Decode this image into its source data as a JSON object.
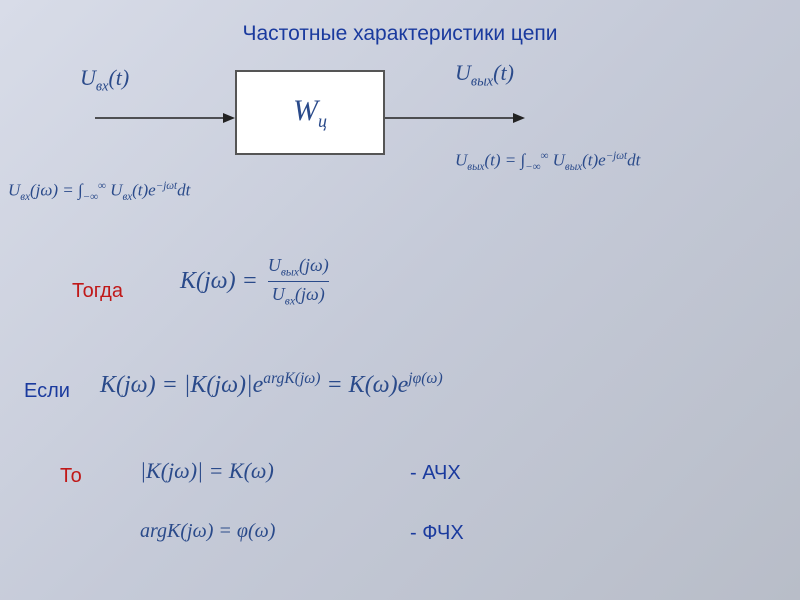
{
  "title": "Частотные характеристики цепи",
  "block": {
    "label_main": "W",
    "label_sub": "ц"
  },
  "signals": {
    "input_label": "U<sub>вх</sub>(t)",
    "output_label": "U<sub>вых</sub>(t)",
    "input_fourier": "U<sub>вх</sub>(jω) = ∫<sub>−∞</sub><sup>∞</sup> U<sub>вх</sub>(t)e<sup>−jωt</sup>dt",
    "output_fourier": "U<sub>вых</sub>(t) = ∫<sub>−∞</sub><sup>∞</sup> U<sub>вых</sub>(t)e<sup>−jωt</sup>dt"
  },
  "labels": {
    "togda": "Тогда",
    "esli": "Если",
    "to": "То",
    "achx": "- АЧХ",
    "fchx": "- ФЧХ"
  },
  "equations": {
    "k_def_left": "K(jω) =",
    "k_def_num": "U<sub>вых</sub>(jω)",
    "k_def_den": "U<sub>вх</sub>(jω)",
    "k_polar": "K(jω) = |K(jω)|e<sup>argK(jω)</sup> = K(ω)e<sup>jφ(ω)</sup>",
    "achx_eq": "|K(jω)| = K(ω)",
    "fchx_eq": "argK(jω) = φ(ω)"
  },
  "arrows": {
    "color": "#222222",
    "length_in": 140,
    "length_out": 140
  },
  "colors": {
    "title": "#1a3a9e",
    "red_label": "#c01818",
    "blue_label": "#1a3a9e",
    "math": "#2a4a8a"
  }
}
